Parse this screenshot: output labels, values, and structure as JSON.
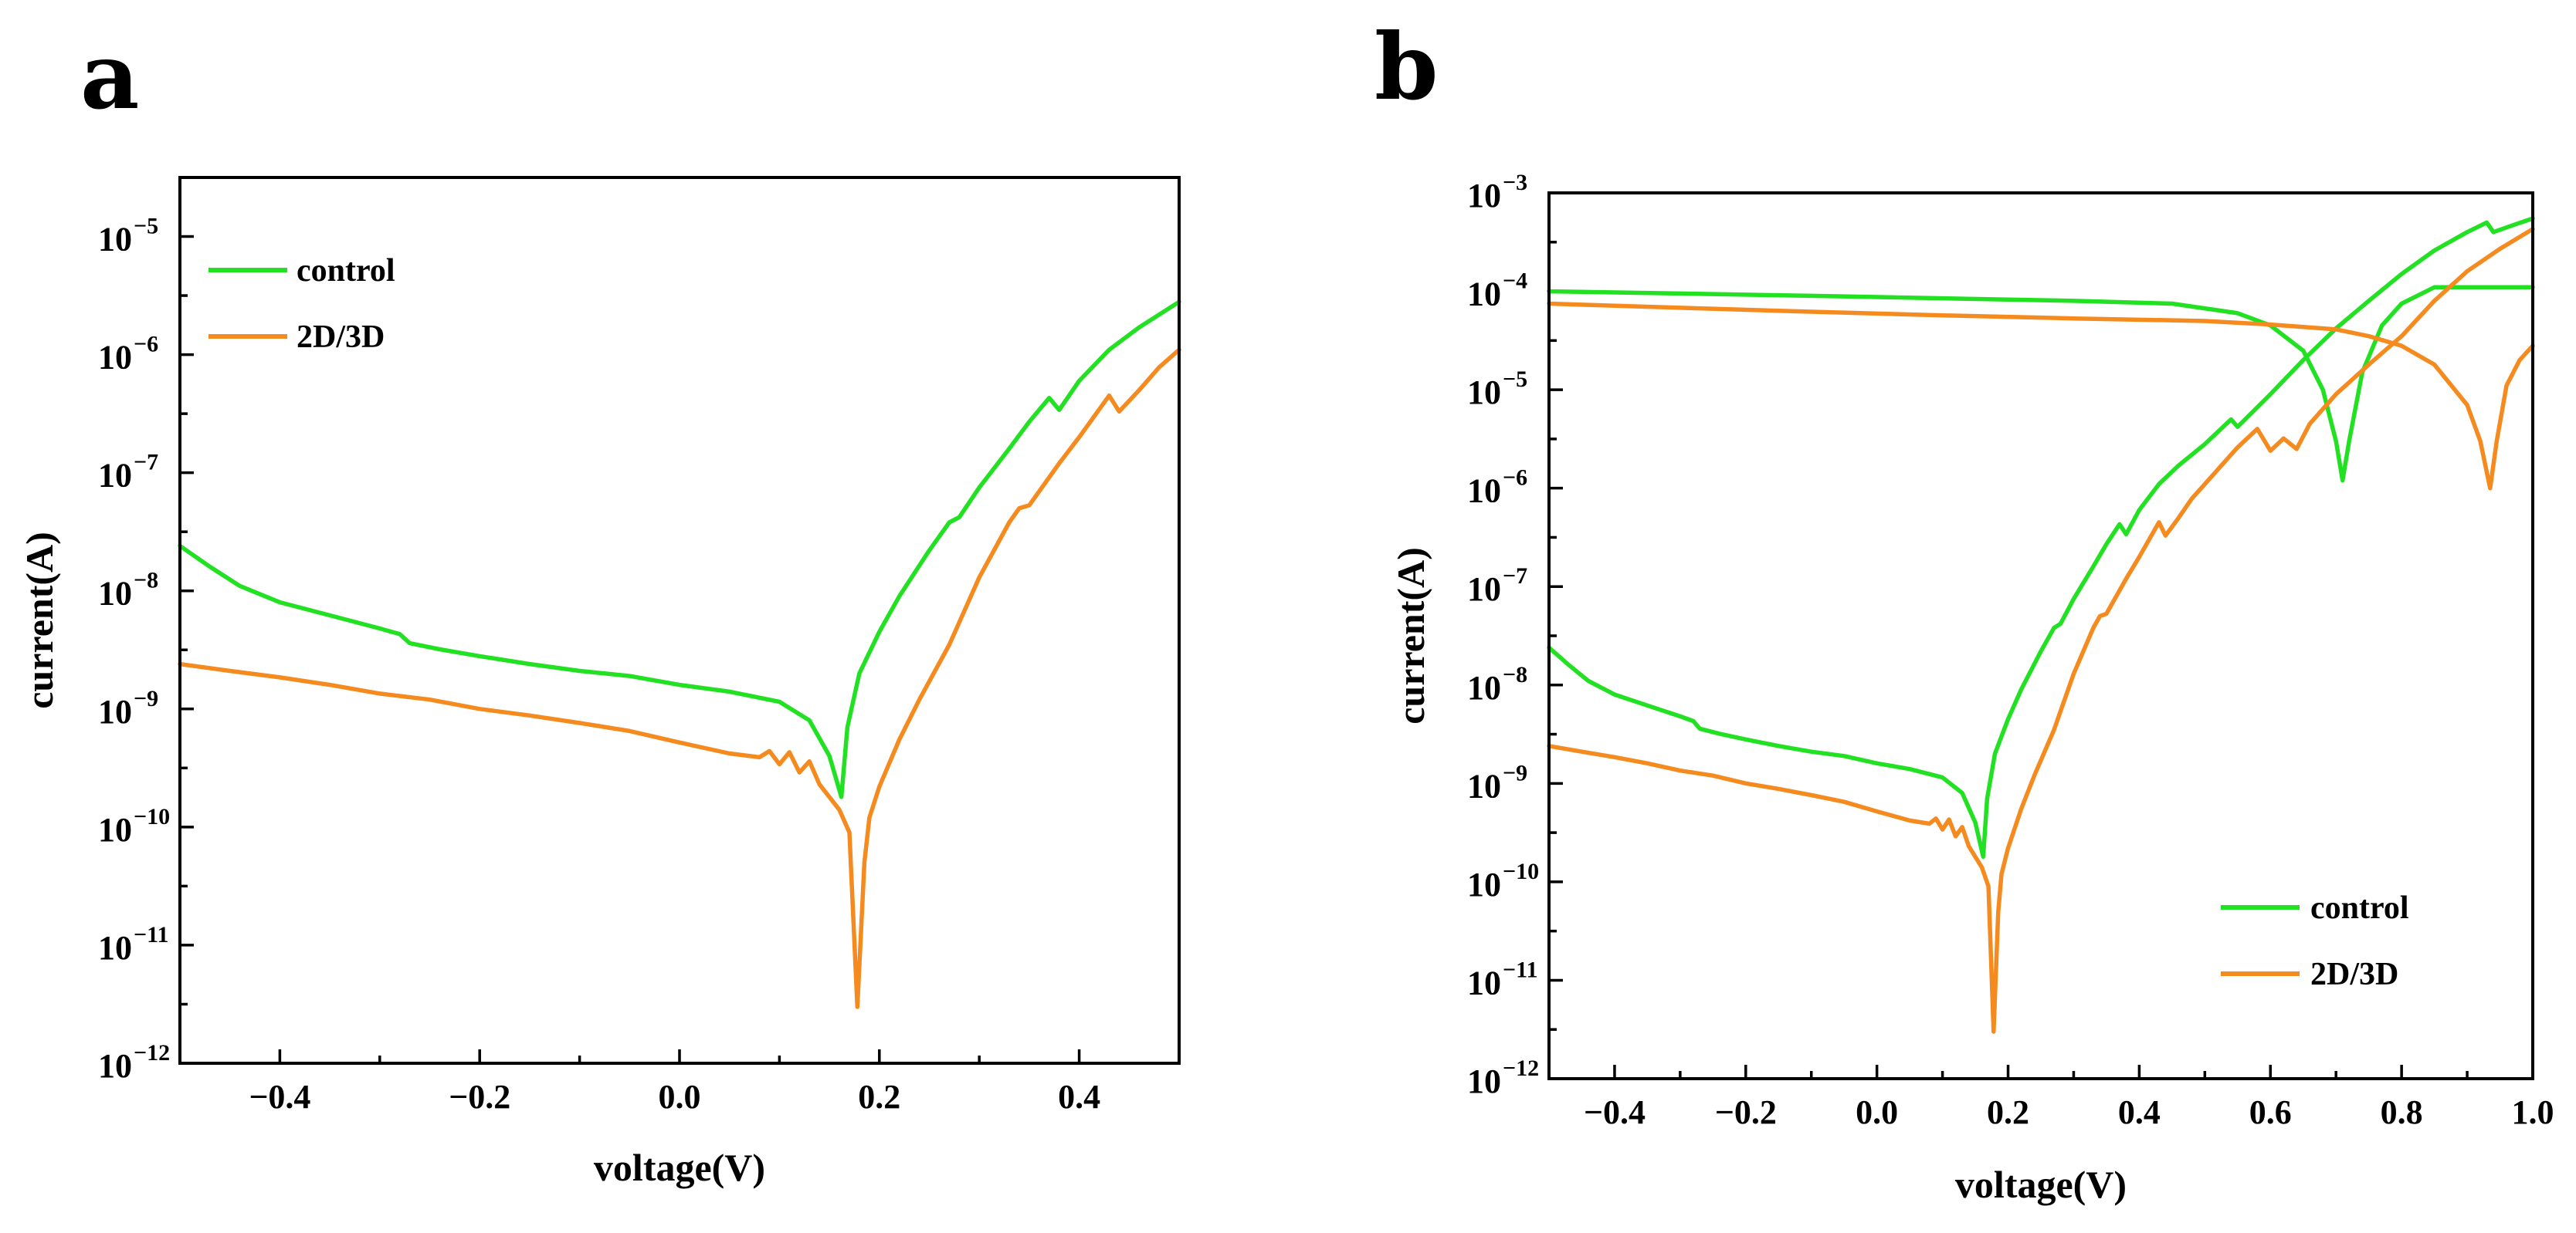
{
  "chart_data": [
    {
      "type": "line",
      "panel": "a",
      "xlabel": "voltage(V)",
      "ylabel": "current(A)",
      "yscale": "log",
      "xlim": [
        -0.5,
        0.5
      ],
      "ylim_exp": [
        -12,
        -4.5
      ],
      "x_ticks": [
        -0.4,
        -0.2,
        0.0,
        0.2,
        0.4
      ],
      "x_tick_labels": [
        "−0.4",
        "−0.2",
        "0.0",
        "0.2",
        "0.4"
      ],
      "y_tick_exponents": [
        -12,
        -11,
        -10,
        -9,
        -8,
        -7,
        -6,
        -5
      ],
      "y_tick_labels": [
        "10",
        "10",
        "10",
        "10",
        "10",
        "10",
        "10",
        "10"
      ],
      "y_tick_superscripts": [
        "−12",
        "−11",
        "−10",
        "−9",
        "−8",
        "−7",
        "−6",
        "−5"
      ],
      "legend_position": "top-left",
      "series": [
        {
          "name": "control",
          "color": "#22e022",
          "points": [
            [
              -0.5,
              2.4e-08
            ],
            [
              -0.47,
              1.6e-08
            ],
            [
              -0.44,
              1.1e-08
            ],
            [
              -0.4,
              8e-09
            ],
            [
              -0.35,
              6.2e-09
            ],
            [
              -0.3,
              4.8e-09
            ],
            [
              -0.28,
              4.3e-09
            ],
            [
              -0.27,
              3.6e-09
            ],
            [
              -0.24,
              3.2e-09
            ],
            [
              -0.2,
              2.8e-09
            ],
            [
              -0.15,
              2.4e-09
            ],
            [
              -0.1,
              2.1e-09
            ],
            [
              -0.05,
              1.9e-09
            ],
            [
              0.0,
              1.6e-09
            ],
            [
              0.05,
              1.4e-09
            ],
            [
              0.1,
              1.15e-09
            ],
            [
              0.13,
              8e-10
            ],
            [
              0.15,
              4e-10
            ],
            [
              0.162,
              1.8e-10
            ],
            [
              0.168,
              7e-10
            ],
            [
              0.18,
              2e-09
            ],
            [
              0.2,
              4.5e-09
            ],
            [
              0.22,
              9e-09
            ],
            [
              0.25,
              2.2e-08
            ],
            [
              0.27,
              3.8e-08
            ],
            [
              0.28,
              4.2e-08
            ],
            [
              0.3,
              7.5e-08
            ],
            [
              0.33,
              1.6e-07
            ],
            [
              0.35,
              2.7e-07
            ],
            [
              0.37,
              4.3e-07
            ],
            [
              0.38,
              3.4e-07
            ],
            [
              0.4,
              6e-07
            ],
            [
              0.43,
              1.1e-06
            ],
            [
              0.46,
              1.7e-06
            ],
            [
              0.5,
              2.8e-06
            ]
          ]
        },
        {
          "name": "2D/3D",
          "color": "#f58a1f",
          "points": [
            [
              -0.5,
              2.4e-09
            ],
            [
              -0.45,
              2.1e-09
            ],
            [
              -0.4,
              1.85e-09
            ],
            [
              -0.35,
              1.6e-09
            ],
            [
              -0.3,
              1.35e-09
            ],
            [
              -0.25,
              1.2e-09
            ],
            [
              -0.2,
              1e-09
            ],
            [
              -0.15,
              8.8e-10
            ],
            [
              -0.1,
              7.6e-10
            ],
            [
              -0.05,
              6.5e-10
            ],
            [
              0.0,
              5.2e-10
            ],
            [
              0.05,
              4.2e-10
            ],
            [
              0.08,
              3.9e-10
            ],
            [
              0.09,
              4.4e-10
            ],
            [
              0.1,
              3.4e-10
            ],
            [
              0.11,
              4.3e-10
            ],
            [
              0.12,
              2.9e-10
            ],
            [
              0.13,
              3.6e-10
            ],
            [
              0.14,
              2.3e-10
            ],
            [
              0.16,
              1.4e-10
            ],
            [
              0.17,
              9e-11
            ],
            [
              0.178,
              3e-12
            ],
            [
              0.185,
              5e-11
            ],
            [
              0.19,
              1.2e-10
            ],
            [
              0.2,
              2.2e-10
            ],
            [
              0.22,
              5.5e-10
            ],
            [
              0.24,
              1.2e-09
            ],
            [
              0.27,
              3.5e-09
            ],
            [
              0.3,
              1.3e-08
            ],
            [
              0.33,
              3.8e-08
            ],
            [
              0.34,
              5e-08
            ],
            [
              0.35,
              5.3e-08
            ],
            [
              0.38,
              1.2e-07
            ],
            [
              0.4,
              2e-07
            ],
            [
              0.43,
              4.5e-07
            ],
            [
              0.44,
              3.3e-07
            ],
            [
              0.46,
              5e-07
            ],
            [
              0.48,
              7.8e-07
            ],
            [
              0.5,
              1.1e-06
            ]
          ]
        }
      ]
    },
    {
      "type": "line",
      "panel": "b",
      "xlabel": "voltage(V)",
      "ylabel": "current(A)",
      "yscale": "log",
      "xlim": [
        -0.5,
        1.0
      ],
      "ylim_exp": [
        -12,
        -3
      ],
      "x_ticks": [
        -0.4,
        -0.2,
        0.0,
        0.2,
        0.4,
        0.6,
        0.8,
        1.0
      ],
      "x_tick_labels": [
        "−0.4",
        "−0.2",
        "0.0",
        "0.2",
        "0.4",
        "0.6",
        "0.8",
        "1.0"
      ],
      "y_tick_exponents": [
        -12,
        -11,
        -10,
        -9,
        -8,
        -7,
        -6,
        -5,
        -4,
        -3
      ],
      "y_tick_labels": [
        "10",
        "10",
        "10",
        "10",
        "10",
        "10",
        "10",
        "10",
        "10",
        "10"
      ],
      "y_tick_superscripts": [
        "−12",
        "−11",
        "−10",
        "−9",
        "−8",
        "−7",
        "−6",
        "−5",
        "−4",
        "−3"
      ],
      "legend_position": "bottom-right",
      "series": [
        {
          "name": "control",
          "color": "#22e022",
          "points": [
            [
              -0.5,
              2.4e-08
            ],
            [
              -0.47,
              1.6e-08
            ],
            [
              -0.44,
              1.1e-08
            ],
            [
              -0.4,
              8e-09
            ],
            [
              -0.35,
              6.2e-09
            ],
            [
              -0.3,
              4.8e-09
            ],
            [
              -0.28,
              4.3e-09
            ],
            [
              -0.27,
              3.6e-09
            ],
            [
              -0.24,
              3.2e-09
            ],
            [
              -0.2,
              2.8e-09
            ],
            [
              -0.15,
              2.4e-09
            ],
            [
              -0.1,
              2.1e-09
            ],
            [
              -0.05,
              1.9e-09
            ],
            [
              0.0,
              1.6e-09
            ],
            [
              0.05,
              1.4e-09
            ],
            [
              0.1,
              1.15e-09
            ],
            [
              0.13,
              8e-10
            ],
            [
              0.15,
              4e-10
            ],
            [
              0.162,
              1.8e-10
            ],
            [
              0.168,
              7e-10
            ],
            [
              0.18,
              2e-09
            ],
            [
              0.2,
              4.5e-09
            ],
            [
              0.22,
              9e-09
            ],
            [
              0.25,
              2.2e-08
            ],
            [
              0.27,
              3.8e-08
            ],
            [
              0.28,
              4.2e-08
            ],
            [
              0.3,
              7.5e-08
            ],
            [
              0.33,
              1.6e-07
            ],
            [
              0.35,
              2.7e-07
            ],
            [
              0.37,
              4.3e-07
            ],
            [
              0.38,
              3.4e-07
            ],
            [
              0.4,
              6e-07
            ],
            [
              0.43,
              1.1e-06
            ],
            [
              0.46,
              1.7e-06
            ],
            [
              0.5,
              2.8e-06
            ],
            [
              0.54,
              5e-06
            ],
            [
              0.55,
              4.2e-06
            ],
            [
              0.6,
              9e-06
            ],
            [
              0.65,
              2e-05
            ],
            [
              0.7,
              4.2e-05
            ],
            [
              0.75,
              8e-05
            ],
            [
              0.8,
              0.00015
            ],
            [
              0.85,
              0.00026
            ],
            [
              0.9,
              0.0004
            ],
            [
              0.93,
              0.0005
            ],
            [
              0.94,
              0.0004
            ],
            [
              0.97,
              0.00047
            ],
            [
              1.0,
              0.00055
            ]
          ]
        },
        {
          "name": "control",
          "color": "#22e022",
          "points": [
            [
              -0.5,
              0.0001
            ],
            [
              -0.3,
              9.5e-05
            ],
            [
              -0.1,
              9e-05
            ],
            [
              0.1,
              8.5e-05
            ],
            [
              0.3,
              8e-05
            ],
            [
              0.45,
              7.5e-05
            ],
            [
              0.55,
              6e-05
            ],
            [
              0.6,
              4.5e-05
            ],
            [
              0.65,
              2.5e-05
            ],
            [
              0.68,
              1e-05
            ],
            [
              0.7,
              3e-06
            ],
            [
              0.71,
              1.2e-06
            ],
            [
              0.72,
              3e-06
            ],
            [
              0.74,
              1.5e-05
            ],
            [
              0.77,
              4.5e-05
            ],
            [
              0.8,
              7.5e-05
            ],
            [
              0.85,
              0.00011
            ],
            [
              0.9,
              0.00011
            ],
            [
              1.0,
              0.00011
            ]
          ]
        },
        {
          "name": "2D/3D",
          "color": "#f58a1f",
          "points": [
            [
              -0.5,
              2.4e-09
            ],
            [
              -0.45,
              2.1e-09
            ],
            [
              -0.4,
              1.85e-09
            ],
            [
              -0.35,
              1.6e-09
            ],
            [
              -0.3,
              1.35e-09
            ],
            [
              -0.25,
              1.2e-09
            ],
            [
              -0.2,
              1e-09
            ],
            [
              -0.15,
              8.8e-10
            ],
            [
              -0.1,
              7.6e-10
            ],
            [
              -0.05,
              6.5e-10
            ],
            [
              0.0,
              5.2e-10
            ],
            [
              0.05,
              4.2e-10
            ],
            [
              0.08,
              3.9e-10
            ],
            [
              0.09,
              4.4e-10
            ],
            [
              0.1,
              3.4e-10
            ],
            [
              0.11,
              4.3e-10
            ],
            [
              0.12,
              2.9e-10
            ],
            [
              0.13,
              3.6e-10
            ],
            [
              0.14,
              2.3e-10
            ],
            [
              0.16,
              1.4e-10
            ],
            [
              0.17,
              9e-11
            ],
            [
              0.178,
              3e-12
            ],
            [
              0.185,
              5e-11
            ],
            [
              0.19,
              1.2e-10
            ],
            [
              0.2,
              2.2e-10
            ],
            [
              0.22,
              5.5e-10
            ],
            [
              0.24,
              1.2e-09
            ],
            [
              0.27,
              3.5e-09
            ],
            [
              0.3,
              1.3e-08
            ],
            [
              0.33,
              3.8e-08
            ],
            [
              0.34,
              5e-08
            ],
            [
              0.35,
              5.3e-08
            ],
            [
              0.38,
              1.2e-07
            ],
            [
              0.4,
              2e-07
            ],
            [
              0.43,
              4.5e-07
            ],
            [
              0.44,
              3.3e-07
            ],
            [
              0.46,
              5e-07
            ],
            [
              0.48,
              7.8e-07
            ],
            [
              0.5,
              1.1e-06
            ],
            [
              0.55,
              2.6e-06
            ],
            [
              0.58,
              4e-06
            ],
            [
              0.6,
              2.4e-06
            ],
            [
              0.62,
              3.2e-06
            ],
            [
              0.64,
              2.5e-06
            ],
            [
              0.66,
              4.5e-06
            ],
            [
              0.7,
              9e-06
            ],
            [
              0.75,
              1.8e-05
            ],
            [
              0.8,
              3.5e-05
            ],
            [
              0.85,
              8e-05
            ],
            [
              0.9,
              0.00016
            ],
            [
              0.95,
              0.00027
            ],
            [
              1.0,
              0.00043
            ]
          ]
        },
        {
          "name": "2D/3D",
          "color": "#f58a1f",
          "points": [
            [
              -0.5,
              7.5e-05
            ],
            [
              -0.3,
              6.8e-05
            ],
            [
              -0.1,
              6.2e-05
            ],
            [
              0.1,
              5.7e-05
            ],
            [
              0.3,
              5.3e-05
            ],
            [
              0.5,
              5e-05
            ],
            [
              0.6,
              4.6e-05
            ],
            [
              0.7,
              4.1e-05
            ],
            [
              0.75,
              3.5e-05
            ],
            [
              0.8,
              2.8e-05
            ],
            [
              0.85,
              1.8e-05
            ],
            [
              0.9,
              7e-06
            ],
            [
              0.92,
              3e-06
            ],
            [
              0.935,
              1e-06
            ],
            [
              0.945,
              3e-06
            ],
            [
              0.96,
              1.1e-05
            ],
            [
              0.98,
              2e-05
            ],
            [
              1.0,
              2.8e-05
            ]
          ]
        }
      ]
    }
  ],
  "legend_a": {
    "control": "control",
    "d2d3": "2D/3D",
    "control_color": "#22e022",
    "d2d3_color": "#f58a1f"
  },
  "legend_b": {
    "control": "control",
    "d2d3": "2D/3D",
    "control_color": "#22e022",
    "d2d3_color": "#f58a1f"
  },
  "panel_labels": {
    "a": "a",
    "b": "b"
  }
}
